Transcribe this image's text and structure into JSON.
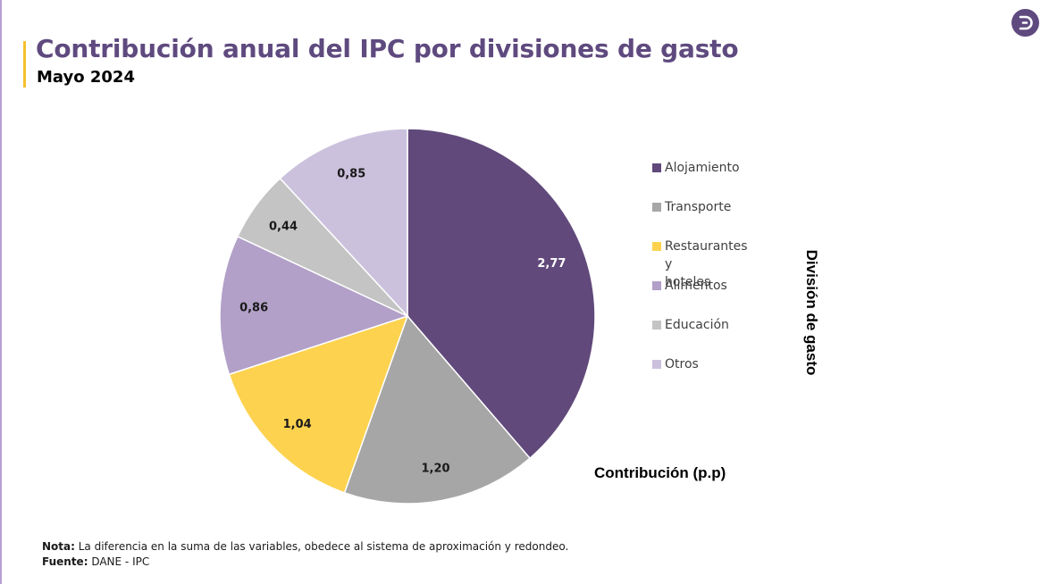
{
  "page": {
    "title": "Contribución anual del IPC por divisiones de gasto",
    "subtitle": "Mayo 2024",
    "logo_icon": "dane-d-logo-icon"
  },
  "colors": {
    "title": "#5f4a7f",
    "accent": "#f2c12e"
  },
  "chart_data": {
    "type": "pie",
    "title": "Contribución anual del IPC por divisiones de gasto",
    "xlabel": "Contribución (p.p)",
    "ylabel": "División de gasto",
    "legend_position": "right",
    "categories": [
      "Alojamiento",
      "Transporte",
      "Restaurantes y\nhoteles",
      "Alimentos",
      "Educación",
      "Otros"
    ],
    "values": [
      2.77,
      1.2,
      1.04,
      0.86,
      0.44,
      0.85
    ],
    "labels": [
      "2,77",
      "1,20",
      "1,04",
      "0,86",
      "0,44",
      "0,85"
    ],
    "colors": [
      "#61497b",
      "#a6a6a6",
      "#fdd24f",
      "#b2a0c8",
      "#c4c4c4",
      "#cbc1dd"
    ]
  },
  "footer": {
    "note_label": "Nota:",
    "note_text": " La diferencia en la suma de las variables, obedece al sistema de aproximación y redondeo.",
    "source_label": "Fuente:",
    "source_text": " DANE - IPC"
  }
}
